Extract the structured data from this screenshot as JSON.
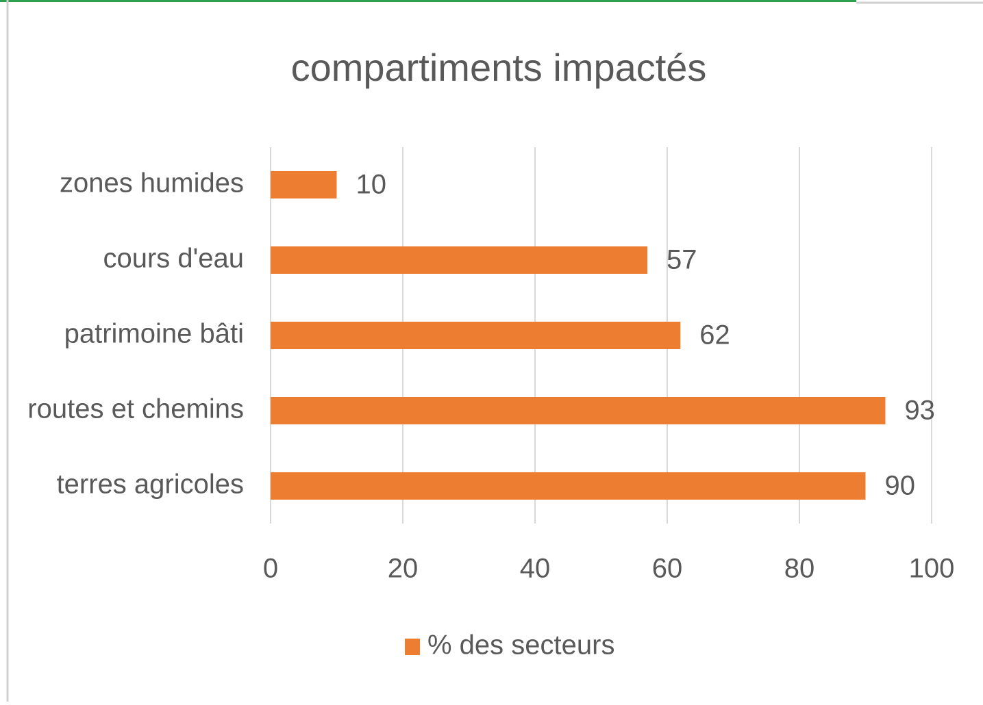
{
  "chart_data": {
    "type": "bar",
    "orientation": "horizontal",
    "title": "compartiments impactés",
    "categories": [
      "zones humides",
      "cours d'eau",
      "patrimoine bâti",
      "routes et chemins",
      "terres agricoles"
    ],
    "series": [
      {
        "name": "% des secteurs",
        "color": "#ed7d31",
        "values": [
          10,
          57,
          62,
          93,
          90
        ]
      }
    ],
    "xlim": [
      0,
      100
    ],
    "xticks": [
      0,
      20,
      40,
      60,
      80,
      100
    ],
    "grid": true,
    "legend": "bottom",
    "data_labels": true
  }
}
